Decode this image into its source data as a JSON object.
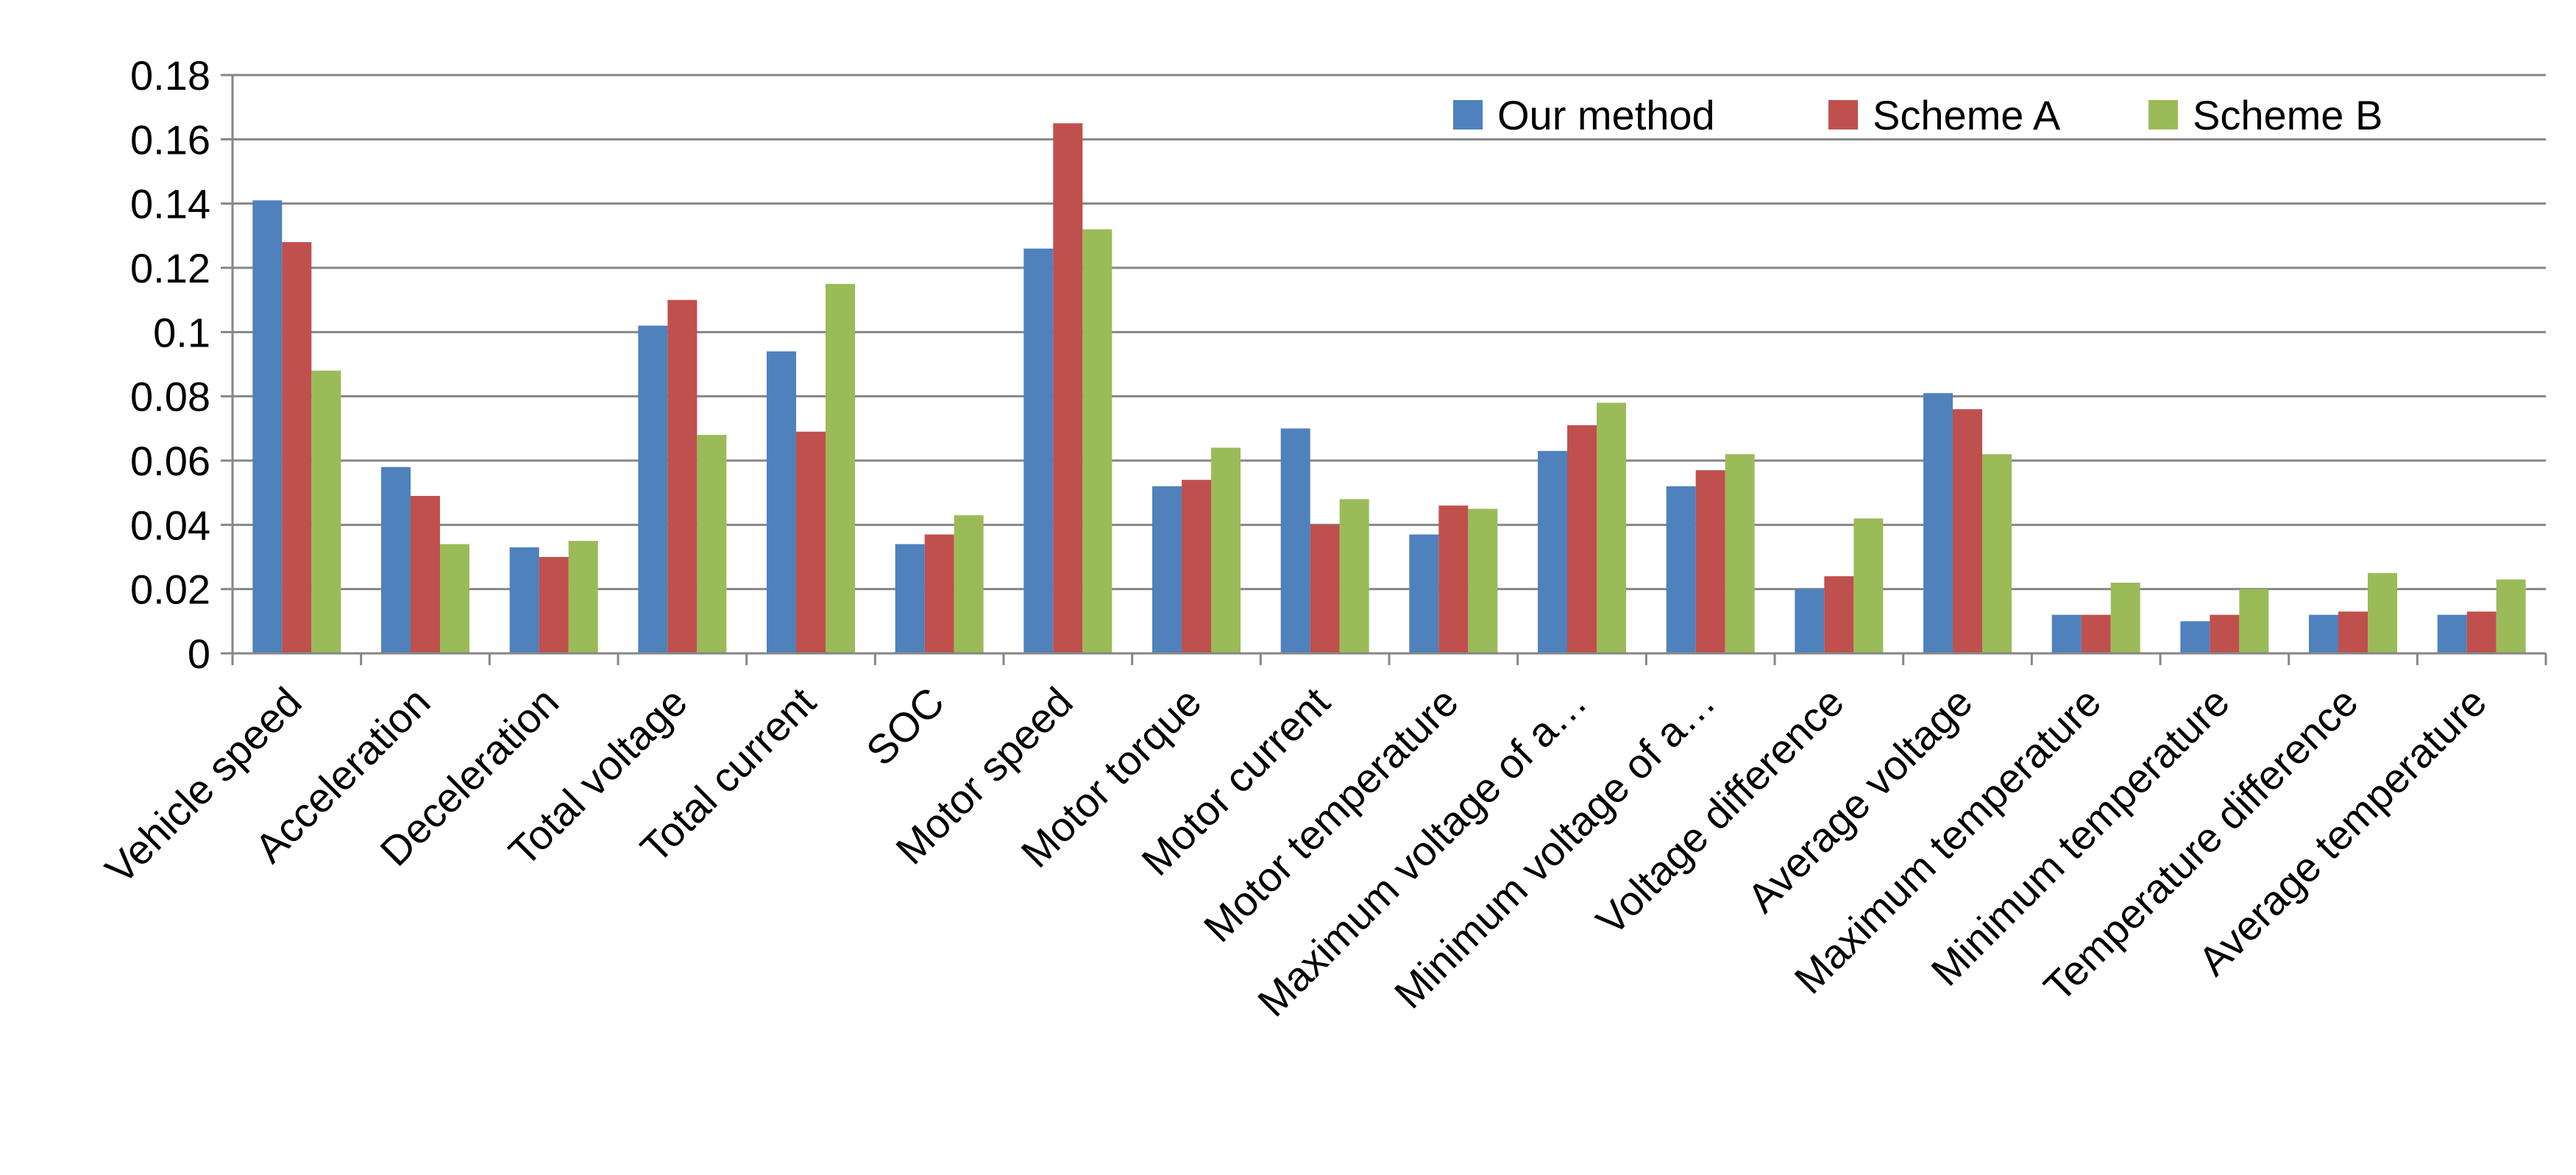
{
  "chart_data": {
    "type": "bar",
    "title": "",
    "xlabel": "",
    "ylabel": "",
    "ylim": [
      0,
      0.18
    ],
    "yticks": [
      "0",
      "0.02",
      "0.04",
      "0.06",
      "0.08",
      "0.1",
      "0.12",
      "0.14",
      "0.16",
      "0.18"
    ],
    "grid": true,
    "legend_position": "top-right",
    "categories": [
      "Vehicle speed",
      "Acceleration",
      "Deceleration",
      "Total voltage",
      "Total current",
      "SOC",
      "Motor speed",
      "Motor torque",
      "Motor current",
      "Motor temperature",
      "Maximum voltage of a…",
      "Minimum voltage of a…",
      "Voltage difference",
      "Average voltage",
      "Maximum temperature",
      "Minimum temperature",
      "Temperature difference",
      "Average temperature"
    ],
    "series": [
      {
        "name": "Our method",
        "color": "#4F81BD",
        "values": [
          0.141,
          0.058,
          0.033,
          0.102,
          0.094,
          0.034,
          0.126,
          0.052,
          0.07,
          0.037,
          0.063,
          0.052,
          0.02,
          0.081,
          0.012,
          0.01,
          0.012,
          0.012
        ]
      },
      {
        "name": "Scheme A",
        "color": "#C0504D",
        "values": [
          0.128,
          0.049,
          0.03,
          0.11,
          0.069,
          0.037,
          0.165,
          0.054,
          0.04,
          0.046,
          0.071,
          0.057,
          0.024,
          0.076,
          0.012,
          0.012,
          0.013,
          0.013
        ]
      },
      {
        "name": "Scheme B",
        "color": "#9BBB59",
        "values": [
          0.088,
          0.034,
          0.035,
          0.068,
          0.115,
          0.043,
          0.132,
          0.064,
          0.048,
          0.045,
          0.078,
          0.062,
          0.042,
          0.062,
          0.022,
          0.02,
          0.025,
          0.023
        ]
      }
    ]
  }
}
